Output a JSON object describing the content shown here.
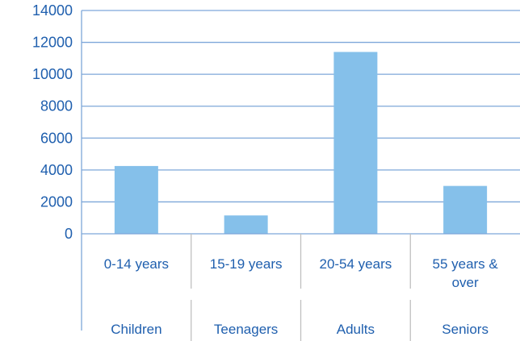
{
  "chart_data": {
    "type": "bar",
    "categories": [
      "0-14 years",
      "15-19 years",
      "20-54 years",
      "55 years & over"
    ],
    "category_lines": [
      [
        "0-14 years"
      ],
      [
        "15-19 years"
      ],
      [
        "20-54 years"
      ],
      [
        "55 years &",
        "over"
      ]
    ],
    "groups": [
      "Children",
      "Teenagers",
      "Adults",
      "Seniors"
    ],
    "values": [
      4250,
      1150,
      11400,
      3000
    ],
    "ylim": [
      0,
      14000
    ],
    "yticks": [
      0,
      2000,
      4000,
      6000,
      8000,
      10000,
      12000,
      14000
    ],
    "title": "",
    "xlabel": "",
    "ylabel": "",
    "grid": true,
    "colors": {
      "bar": "#85c0ea",
      "grid": "#7ea7d9",
      "text": "#1f5fae"
    }
  }
}
